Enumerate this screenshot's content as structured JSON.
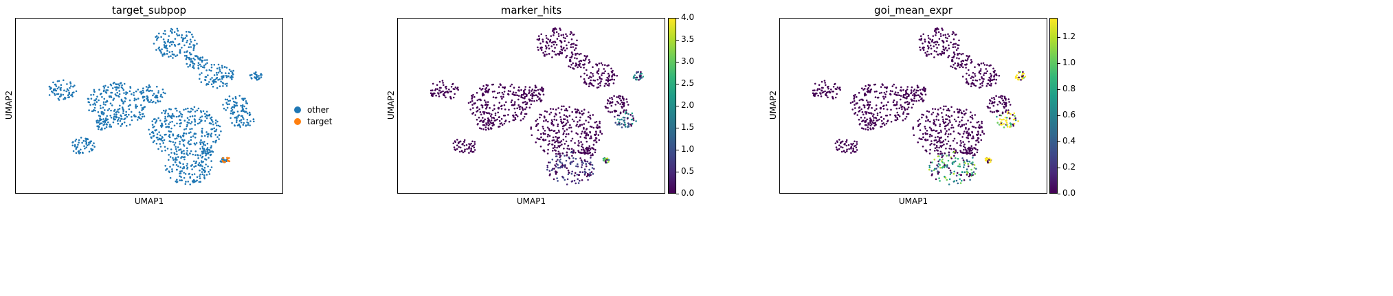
{
  "chart_data": [
    {
      "type": "scatter",
      "title": "target_subpop",
      "xlabel": "UMAP1",
      "ylabel": "UMAP2",
      "color_mode": "categorical",
      "legend": [
        {
          "label": "other",
          "color": "#1f77b4"
        },
        {
          "label": "target",
          "color": "#ff7f0e"
        }
      ],
      "legend_position": "right",
      "grid": false,
      "clusters": [
        {
          "x": 6.6,
          "y": 7.0,
          "r": 0.9,
          "value": 0
        },
        {
          "x": 4.1,
          "y": 3.6,
          "r": 1.3,
          "value": 0
        },
        {
          "x": 7.0,
          "y": 2.1,
          "r": 1.5,
          "value": 0
        },
        {
          "x": 1.7,
          "y": 4.4,
          "r": 0.6,
          "value": 0
        },
        {
          "x": 5.6,
          "y": 4.2,
          "r": 0.55,
          "value": 0
        },
        {
          "x": 8.4,
          "y": 5.2,
          "r": 0.75,
          "value": 0
        },
        {
          "x": 7.5,
          "y": 6.0,
          "r": 0.5,
          "value": 0
        },
        {
          "x": 9.2,
          "y": 3.6,
          "r": 0.55,
          "value": 0
        },
        {
          "x": 7.2,
          "y": 0.1,
          "r": 1.0,
          "value": 1
        },
        {
          "x": 9.5,
          "y": 2.8,
          "r": 0.5,
          "value": 2
        },
        {
          "x": 10.1,
          "y": 5.2,
          "r": 0.25,
          "value": 2
        },
        {
          "x": 2.6,
          "y": 1.3,
          "r": 0.5,
          "value": 0
        },
        {
          "x": 3.5,
          "y": 2.5,
          "r": 0.35,
          "value": 0
        },
        {
          "x": 8.0,
          "y": 1.0,
          "r": 0.25,
          "value": 0
        },
        {
          "x": 8.7,
          "y": 0.5,
          "r": 0.15,
          "value": 3.4
        }
      ],
      "target_point": {
        "x": 8.8,
        "y": 0.5
      }
    },
    {
      "type": "scatter",
      "title": "marker_hits",
      "xlabel": "UMAP1",
      "ylabel": "UMAP2",
      "color_mode": "continuous",
      "colormap": "viridis",
      "colorbar": {
        "min": 0.0,
        "max": 4.0,
        "ticks": [
          "0.0",
          "0.5",
          "1.0",
          "1.5",
          "2.0",
          "2.5",
          "3.0",
          "3.5",
          "4.0"
        ]
      }
    },
    {
      "type": "scatter",
      "title": "goi_mean_expr",
      "xlabel": "UMAP1",
      "ylabel": "UMAP2",
      "color_mode": "continuous",
      "colormap": "viridis",
      "colorbar": {
        "min": 0.0,
        "max": 1.35,
        "ticks": [
          "0.0",
          "0.2",
          "0.4",
          "0.6",
          "0.8",
          "1.0",
          "1.2"
        ]
      }
    }
  ]
}
